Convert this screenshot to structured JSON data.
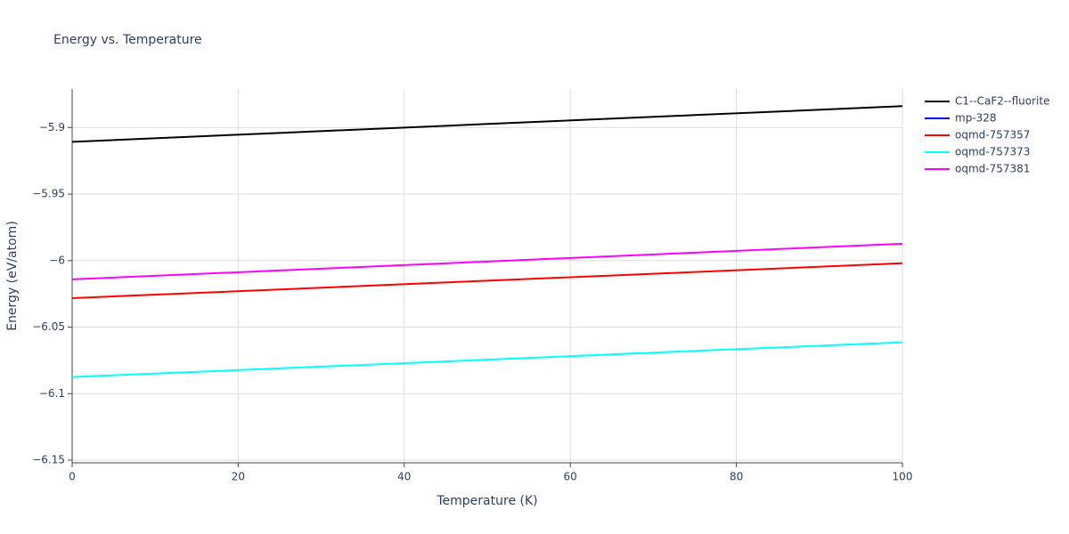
{
  "chart_data": {
    "type": "line",
    "title": "Energy vs. Temperature",
    "x_label": "Temperature (K)",
    "y_label": "Energy (eV/atom)",
    "x": [
      0,
      25,
      50,
      75,
      100
    ],
    "series": [
      {
        "name": "C1--CaF2--fluorite",
        "color": "#000000",
        "values": [
          -5.9107,
          -5.904,
          -5.8973,
          -5.8906,
          -5.8839
        ]
      },
      {
        "name": "mp-328",
        "color": "#0000ff",
        "values": [
          null,
          null,
          null,
          null,
          null
        ]
      },
      {
        "name": "oqmd-757357",
        "color": "#ff0000",
        "values": [
          -6.0282,
          -6.0217,
          -6.0151,
          -6.0086,
          -6.002
        ]
      },
      {
        "name": "oqmd-757373",
        "color": "#00ffff",
        "values": [
          -6.0875,
          -6.081,
          -6.0745,
          -6.0679,
          -6.0614
        ]
      },
      {
        "name": "oqmd-757381",
        "color": "#ff00ff",
        "values": [
          -6.0141,
          -6.0074,
          -6.0007,
          -5.994,
          -5.9873
        ]
      }
    ],
    "xlim": [
      0,
      100
    ],
    "xticks": [
      0,
      20,
      40,
      60,
      80,
      100
    ],
    "ylim": [
      -6.152,
      -5.871
    ],
    "yticks": [
      {
        "value": -5.9,
        "label": "−5.9"
      },
      {
        "value": -5.95,
        "label": "−5.95"
      },
      {
        "value": -6,
        "label": "−6"
      },
      {
        "value": -6.05,
        "label": "−6.05"
      },
      {
        "value": -6.1,
        "label": "−6.1"
      },
      {
        "value": -6.15,
        "label": "−6.15"
      }
    ],
    "grid": true,
    "legend": "right"
  }
}
